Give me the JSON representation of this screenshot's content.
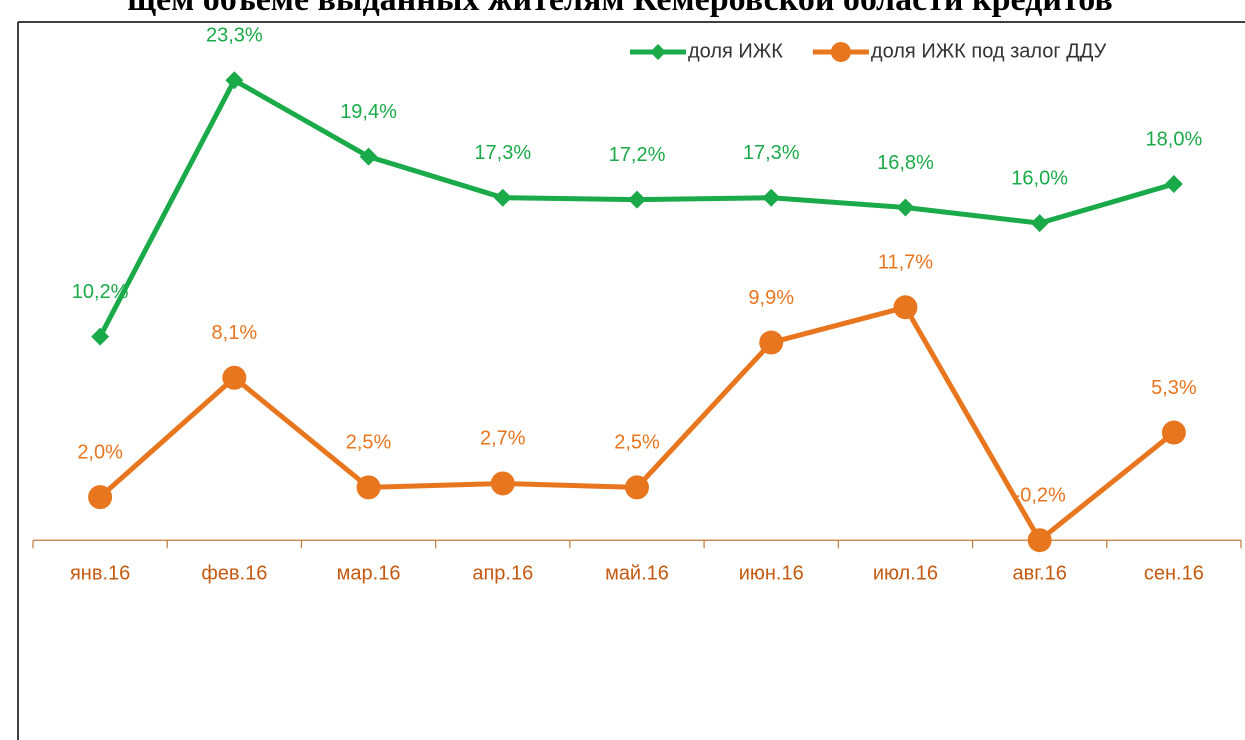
{
  "chart_data": {
    "type": "line",
    "title": "щем объеме выданных жителям Кемеровской области кредитов",
    "categories": [
      "янв.16",
      "фев.16",
      "мар.16",
      "апр.16",
      "май.16",
      "июн.16",
      "июл.16",
      "авг.16",
      "сен.16"
    ],
    "series": [
      {
        "name": "доля ИЖК",
        "color": "#1aaa4a",
        "marker": "diamond",
        "values": [
          10.2,
          23.3,
          19.4,
          17.3,
          17.2,
          17.3,
          16.8,
          16.0,
          18.0
        ],
        "value_labels": [
          "10,2%",
          "23,3%",
          "19,4%",
          "17,3%",
          "17,2%",
          "17,3%",
          "16,8%",
          "16,0%",
          "18,0%"
        ]
      },
      {
        "name": "доля ИЖК под залог ДДУ",
        "color": "#e8761e",
        "marker": "circle",
        "values": [
          2.0,
          8.1,
          2.5,
          2.7,
          2.5,
          9.9,
          11.7,
          -0.2,
          5.3
        ],
        "value_labels": [
          "2,0%",
          "8,1%",
          "2,5%",
          "2,7%",
          "2,5%",
          "9,9%",
          "11,7%",
          "-0,2%",
          "5,3%"
        ]
      }
    ],
    "ylim": [
      -10,
      25
    ],
    "legend": "top-right"
  }
}
